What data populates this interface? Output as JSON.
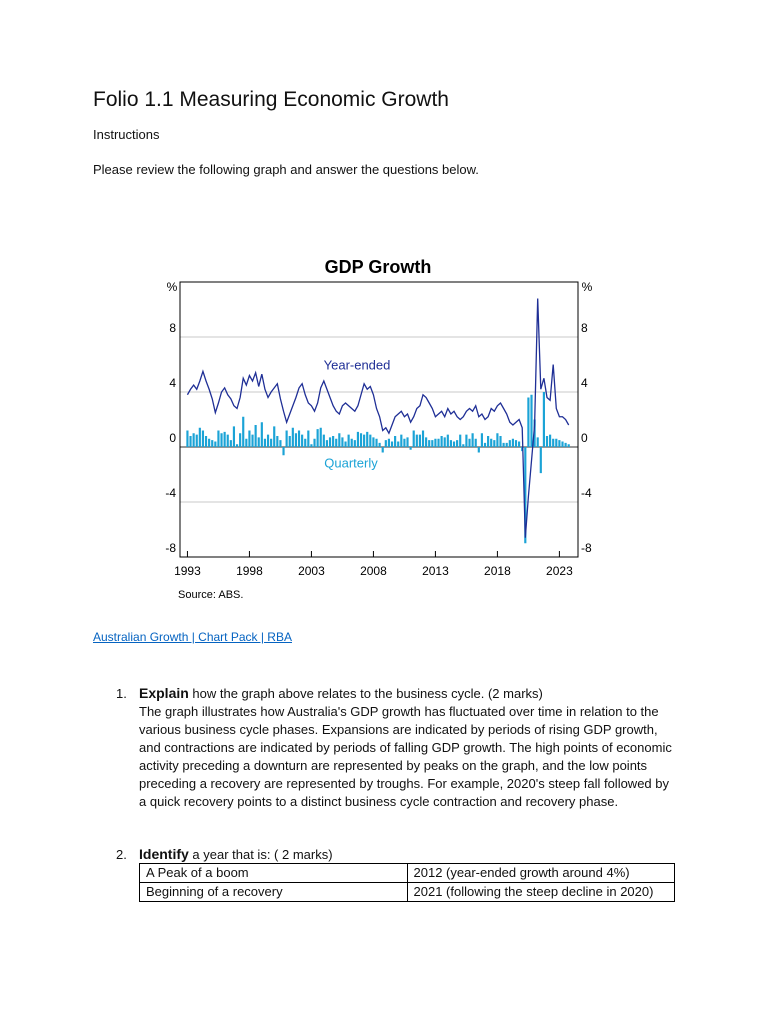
{
  "document": {
    "title": "Folio 1.1 Measuring Economic Growth",
    "instructions": "Instructions",
    "prompt": "Please review the following graph and answer the questions below.",
    "link": "Australian Growth | Chart Pack | RBA",
    "questions": [
      {
        "number": "1.",
        "verb": "Explain",
        "text": " how the graph above relates to the business cycle. (2 marks)",
        "answer": "The graph illustrates how Australia's GDP growth has fluctuated over time in relation to the various business cycle phases. Expansions are indicated by periods of rising GDP growth, and contractions are indicated by periods of falling GDP growth. The high points of economic activity preceding a downturn are represented by peaks on the graph, and the low points preceding a recovery are represented by troughs. For example, 2020's steep fall followed by a quick recovery points to a distinct business cycle contraction and recovery phase."
      },
      {
        "number": "2.",
        "verb": "Identify",
        "text": " a year that is: ( 2 marks)",
        "table": {
          "rows": [
            [
              "A Peak of a boom",
              "2012 (year-ended growth around 4%)"
            ],
            [
              "Beginning of a recovery",
              "2021 (following the steep decline in 2020)"
            ]
          ]
        }
      }
    ]
  },
  "chart_data": {
    "type": "bar-line",
    "title": "GDP Growth",
    "ylabel": "%",
    "source": "Source: ABS.",
    "xlim": [
      1992.4,
      2024.5
    ],
    "xticks": [
      1993,
      1998,
      2003,
      2008,
      2013,
      2018,
      2023
    ],
    "ylim": [
      -8,
      12
    ],
    "yticks": [
      -8,
      -4,
      0,
      4,
      8
    ],
    "grid": true,
    "x": [
      1993,
      1993.25,
      1993.5,
      1993.75,
      1994,
      1994.25,
      1994.5,
      1994.75,
      1995,
      1995.25,
      1995.5,
      1995.75,
      1996,
      1996.25,
      1996.5,
      1996.75,
      1997,
      1997.25,
      1997.5,
      1997.75,
      1998,
      1998.25,
      1998.5,
      1998.75,
      1999,
      1999.25,
      1999.5,
      1999.75,
      2000,
      2000.25,
      2000.5,
      2000.75,
      2001,
      2001.25,
      2001.5,
      2001.75,
      2002,
      2002.25,
      2002.5,
      2002.75,
      2003,
      2003.25,
      2003.5,
      2003.75,
      2004,
      2004.25,
      2004.5,
      2004.75,
      2005,
      2005.25,
      2005.5,
      2005.75,
      2006,
      2006.25,
      2006.5,
      2006.75,
      2007,
      2007.25,
      2007.5,
      2007.75,
      2008,
      2008.25,
      2008.5,
      2008.75,
      2009,
      2009.25,
      2009.5,
      2009.75,
      2010,
      2010.25,
      2010.5,
      2010.75,
      2011,
      2011.25,
      2011.5,
      2011.75,
      2012,
      2012.25,
      2012.5,
      2012.75,
      2013,
      2013.25,
      2013.5,
      2013.75,
      2014,
      2014.25,
      2014.5,
      2014.75,
      2015,
      2015.25,
      2015.5,
      2015.75,
      2016,
      2016.25,
      2016.5,
      2016.75,
      2017,
      2017.25,
      2017.5,
      2017.75,
      2018,
      2018.25,
      2018.5,
      2018.75,
      2019,
      2019.25,
      2019.5,
      2019.75,
      2020,
      2020.25,
      2020.5,
      2020.75,
      2021,
      2021.25,
      2021.5,
      2021.75,
      2022,
      2022.25,
      2022.5,
      2022.75,
      2023,
      2023.25,
      2023.5,
      2023.75
    ],
    "series": [
      {
        "name": "Year-ended",
        "type": "line",
        "color": "#1f2f96",
        "values": [
          3.8,
          4.2,
          4.5,
          4.2,
          4.8,
          5.5,
          4.8,
          4.2,
          3.5,
          2.5,
          3.2,
          4.0,
          4.3,
          3.8,
          3.5,
          3.0,
          2.8,
          3.6,
          5.0,
          4.5,
          5.2,
          4.8,
          5.4,
          4.4,
          5.3,
          4.2,
          3.6,
          4.0,
          4.3,
          4.6,
          3.5,
          2.6,
          1.8,
          2.4,
          3.0,
          3.6,
          4.3,
          4.6,
          3.8,
          3.2,
          3.0,
          2.6,
          3.2,
          4.3,
          4.8,
          4.2,
          3.6,
          3.0,
          2.6,
          2.4,
          3.0,
          3.2,
          3.0,
          2.8,
          2.6,
          3.0,
          3.8,
          4.6,
          4.2,
          4.4,
          3.8,
          2.8,
          2.2,
          1.2,
          1.4,
          1.0,
          1.6,
          2.2,
          2.4,
          2.6,
          2.2,
          2.4,
          1.8,
          2.2,
          2.8,
          3.0,
          3.8,
          3.6,
          3.2,
          2.8,
          2.2,
          2.4,
          2.6,
          2.2,
          2.8,
          2.4,
          2.6,
          2.2,
          2.0,
          2.2,
          2.6,
          2.8,
          2.6,
          3.0,
          2.2,
          2.4,
          2.0,
          2.2,
          2.8,
          2.6,
          3.0,
          3.2,
          2.8,
          2.4,
          1.8,
          1.6,
          1.8,
          2.0,
          1.4,
          -6.6,
          -3.6,
          -1.0,
          1.6,
          10.8,
          4.2,
          5.0,
          3.6,
          3.4,
          6.0,
          2.8,
          2.2,
          2.2,
          2.0,
          1.6
        ]
      },
      {
        "name": "Quarterly",
        "type": "bar",
        "color": "#1ba3d6",
        "values": [
          1.2,
          0.8,
          1.0,
          0.9,
          1.4,
          1.2,
          0.8,
          0.6,
          0.5,
          0.4,
          1.2,
          1.0,
          1.1,
          0.9,
          0.5,
          1.5,
          0.2,
          1.0,
          2.2,
          0.6,
          1.2,
          0.9,
          1.6,
          0.7,
          1.8,
          0.6,
          0.9,
          0.6,
          1.5,
          0.8,
          0.5,
          -0.6,
          1.2,
          0.8,
          1.4,
          1.0,
          1.2,
          0.9,
          0.6,
          1.2,
          0.2,
          0.6,
          1.3,
          1.4,
          0.9,
          0.5,
          0.7,
          0.8,
          0.6,
          1.0,
          0.7,
          0.4,
          0.9,
          0.6,
          0.5,
          1.1,
          1.0,
          0.9,
          1.1,
          0.9,
          0.7,
          0.6,
          0.3,
          -0.4,
          0.5,
          0.6,
          0.4,
          0.8,
          0.4,
          0.9,
          0.6,
          0.7,
          -0.2,
          1.2,
          0.9,
          0.9,
          1.2,
          0.7,
          0.5,
          0.5,
          0.6,
          0.6,
          0.8,
          0.7,
          0.9,
          0.5,
          0.4,
          0.5,
          0.9,
          0.2,
          0.9,
          0.6,
          1.0,
          0.6,
          -0.4,
          1.0,
          0.3,
          0.8,
          0.6,
          0.5,
          1.0,
          0.8,
          0.3,
          0.3,
          0.5,
          0.6,
          0.5,
          0.4,
          -0.3,
          -7.0,
          3.6,
          3.8,
          2.0,
          0.7,
          -1.9,
          4.0,
          0.8,
          0.9,
          0.6,
          0.6,
          0.5,
          0.4,
          0.3,
          0.2
        ]
      }
    ]
  }
}
